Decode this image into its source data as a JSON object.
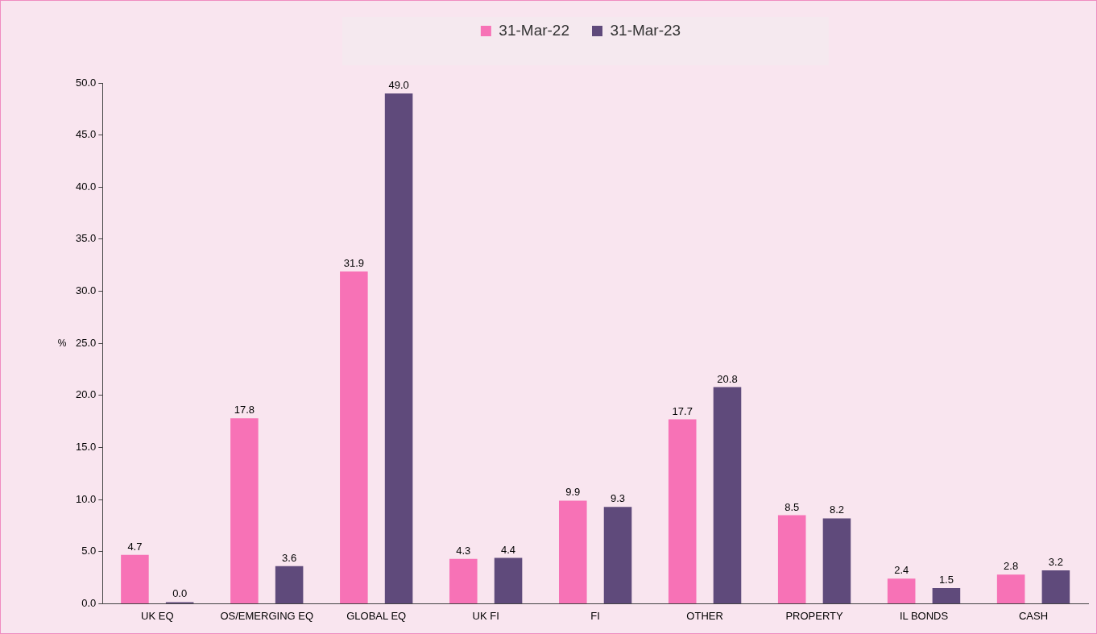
{
  "chart_data": {
    "type": "bar",
    "ylabel": "%",
    "categories": [
      "UK EQ",
      "OS/EMERGING EQ",
      "GLOBAL EQ",
      "UK FI",
      "FI",
      "OTHER",
      "PROPERTY",
      "IL BONDS",
      "CASH"
    ],
    "series": [
      {
        "name": "31-Mar-22",
        "color": "#f772b6",
        "values": [
          4.7,
          17.8,
          31.9,
          4.3,
          9.9,
          17.7,
          8.5,
          2.4,
          2.8
        ],
        "value_labels": [
          "4.7",
          "17.8",
          "31.9",
          "4.3",
          "9.9",
          "17.7",
          "8.5",
          "2.4",
          "2.8"
        ]
      },
      {
        "name": "31-Mar-23",
        "color": "#5f4a7b",
        "values": [
          0,
          3.6,
          49,
          4.4,
          9.3,
          20.8,
          8.2,
          1.5,
          3.2
        ],
        "value_labels": [
          "0.0",
          "3.6",
          "49.0",
          "4.4",
          "9.3",
          "20.8",
          "8.2",
          "1.5",
          "3.2"
        ]
      }
    ],
    "ylim": [
      0,
      50
    ],
    "yticks": [
      {
        "value": 0,
        "label": "0.0"
      },
      {
        "value": 5,
        "label": "5.0"
      },
      {
        "value": 10,
        "label": "10.0"
      },
      {
        "value": 15,
        "label": "15.0"
      },
      {
        "value": 20,
        "label": "20.0"
      },
      {
        "value": 25,
        "label": "25.0"
      },
      {
        "value": 30,
        "label": "30.0"
      },
      {
        "value": 35,
        "label": "35.0"
      },
      {
        "value": 40,
        "label": "40.0"
      },
      {
        "value": 45,
        "label": "45.0"
      },
      {
        "value": 50,
        "label": "50.0"
      }
    ],
    "grid": false,
    "legend": "top"
  }
}
